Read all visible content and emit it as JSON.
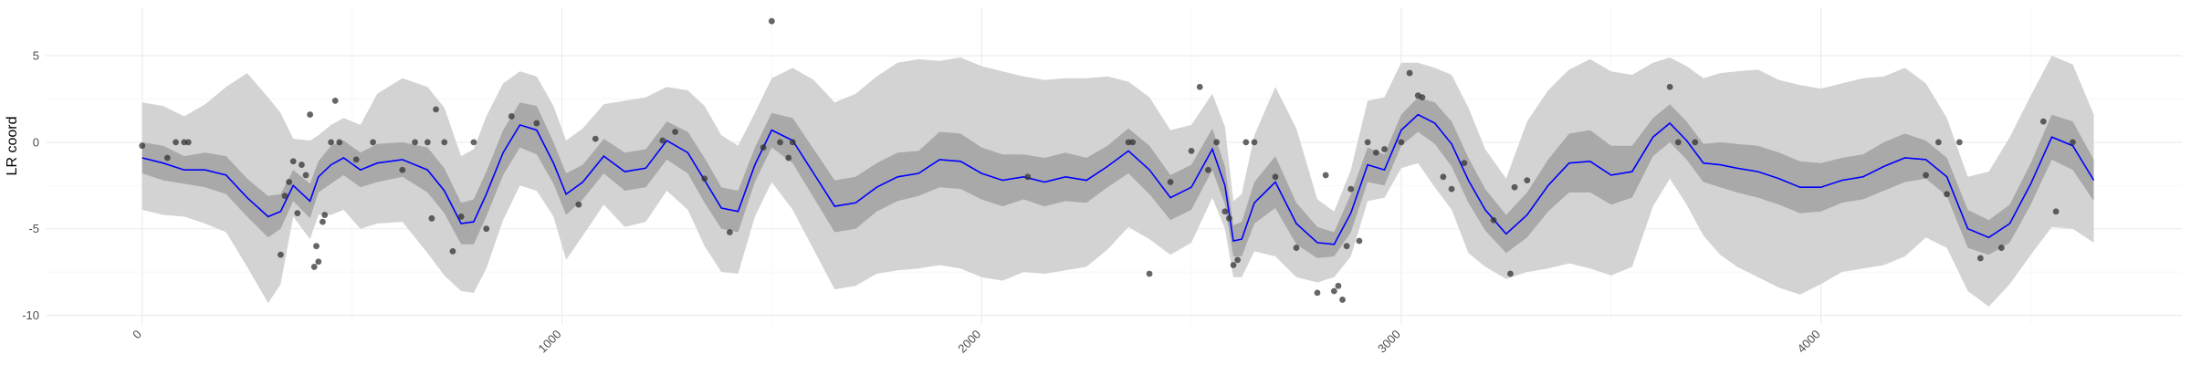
{
  "chart_data": {
    "type": "line",
    "title": "",
    "xlabel": "",
    "ylabel": "LR coord",
    "xlim": [
      -230,
      4860
    ],
    "ylim": [
      -10.5,
      7.8
    ],
    "grid": true,
    "x_ticks": [
      0,
      1000,
      2000,
      3000,
      4000
    ],
    "x_tick_labels": [
      "0",
      "1000",
      "2000",
      "3000",
      "4000"
    ],
    "y_ticks": [
      -10,
      -5,
      0,
      5
    ],
    "y_tick_labels": [
      "-10",
      "-5",
      "0",
      "5"
    ],
    "colors": {
      "line": "#0000ff",
      "band_inner": "#a9a9a9",
      "band_outer": "#d3d3d3",
      "points": "#333333"
    },
    "series": [
      {
        "type": "line",
        "x": [
          0,
          50,
          100,
          150,
          200,
          250,
          300,
          330,
          360,
          400,
          420,
          450,
          480,
          520,
          560,
          620,
          680,
          720,
          760,
          790,
          820,
          860,
          900,
          940,
          980,
          1010,
          1050,
          1100,
          1150,
          1200,
          1250,
          1300,
          1340,
          1380,
          1420,
          1460,
          1500,
          1550,
          1600,
          1650,
          1700,
          1750,
          1800,
          1850,
          1900,
          1950,
          2000,
          2050,
          2100,
          2150,
          2200,
          2250,
          2300,
          2350,
          2400,
          2450,
          2500,
          2550,
          2580,
          2600,
          2620,
          2650,
          2700,
          2750,
          2800,
          2840,
          2880,
          2920,
          2960,
          3000,
          3040,
          3080,
          3120,
          3160,
          3200,
          3250,
          3300,
          3350,
          3400,
          3450,
          3500,
          3550,
          3600,
          3640,
          3680,
          3720,
          3760,
          3800,
          3850,
          3900,
          3950,
          4000,
          4050,
          4100,
          4150,
          4200,
          4250,
          4300,
          4350,
          4400,
          4450,
          4500,
          4550,
          4600,
          4650
        ],
        "y": [
          -0.9,
          -1.2,
          -1.6,
          -1.6,
          -1.9,
          -3.2,
          -4.3,
          -4.0,
          -2.5,
          -3.4,
          -2.0,
          -1.3,
          -0.9,
          -1.6,
          -1.2,
          -1.0,
          -1.6,
          -2.8,
          -4.7,
          -4.6,
          -3.0,
          -0.6,
          1.0,
          0.7,
          -1.2,
          -3.0,
          -2.3,
          -0.8,
          -1.7,
          -1.5,
          0.1,
          -0.6,
          -2.2,
          -3.8,
          -4.0,
          -1.3,
          0.7,
          0.1,
          -1.8,
          -3.7,
          -3.5,
          -2.6,
          -2.0,
          -1.8,
          -1.0,
          -1.1,
          -1.8,
          -2.2,
          -2.0,
          -2.3,
          -2.0,
          -2.2,
          -1.4,
          -0.5,
          -1.6,
          -3.2,
          -2.6,
          -0.4,
          -2.5,
          -5.7,
          -5.6,
          -3.5,
          -2.3,
          -4.7,
          -5.8,
          -5.9,
          -4.1,
          -1.3,
          -1.6,
          0.7,
          1.6,
          1.1,
          -0.1,
          -2.2,
          -3.9,
          -5.3,
          -4.2,
          -2.5,
          -1.2,
          -1.1,
          -1.9,
          -1.7,
          0.3,
          1.1,
          0.1,
          -1.2,
          -1.3,
          -1.5,
          -1.7,
          -2.1,
          -2.6,
          -2.6,
          -2.2,
          -2.0,
          -1.4,
          -0.9,
          -1.0,
          -2.0,
          -5.0,
          -5.5,
          -4.7,
          -2.4,
          0.3,
          -0.2,
          -2.2
        ],
        "inner_lower": [
          -1.8,
          -2.2,
          -2.4,
          -2.6,
          -3.0,
          -4.3,
          -5.5,
          -5.0,
          -3.4,
          -4.4,
          -2.9,
          -2.4,
          -1.9,
          -2.6,
          -2.3,
          -2.0,
          -2.9,
          -4.1,
          -5.9,
          -5.9,
          -4.3,
          -1.9,
          -0.3,
          -0.7,
          -2.4,
          -4.2,
          -3.3,
          -1.8,
          -2.8,
          -2.6,
          -1.0,
          -1.8,
          -3.5,
          -5.0,
          -5.2,
          -2.3,
          -0.3,
          -1.2,
          -3.2,
          -5.2,
          -5.0,
          -4.0,
          -3.4,
          -3.1,
          -2.6,
          -2.7,
          -3.3,
          -3.7,
          -3.3,
          -3.7,
          -3.4,
          -3.5,
          -2.6,
          -1.8,
          -3.0,
          -4.5,
          -3.9,
          -1.6,
          -3.6,
          -6.6,
          -6.6,
          -4.7,
          -3.8,
          -5.9,
          -6.7,
          -6.6,
          -5.2,
          -2.3,
          -2.5,
          -0.2,
          0.6,
          -0.1,
          -1.4,
          -3.5,
          -5.1,
          -6.4,
          -5.5,
          -4.0,
          -2.9,
          -2.9,
          -3.6,
          -3.2,
          -0.8,
          0.0,
          -1.0,
          -2.3,
          -2.6,
          -2.9,
          -3.2,
          -3.6,
          -4.1,
          -4.0,
          -3.5,
          -3.3,
          -2.8,
          -2.3,
          -2.1,
          -3.1,
          -6.1,
          -6.5,
          -5.8,
          -3.6,
          -1.0,
          -1.6,
          -3.4
        ],
        "inner_upper": [
          0.0,
          -0.2,
          -0.8,
          -0.6,
          -0.8,
          -2.1,
          -3.1,
          -3.0,
          -1.6,
          -2.4,
          -1.1,
          -0.2,
          0.1,
          -0.6,
          -0.1,
          0.0,
          -0.3,
          -1.5,
          -3.5,
          -3.3,
          -1.7,
          0.7,
          2.3,
          2.1,
          0.0,
          -1.8,
          -1.3,
          0.2,
          -0.6,
          -0.4,
          1.2,
          0.6,
          -0.9,
          -2.6,
          -2.8,
          -0.3,
          1.7,
          1.4,
          -0.4,
          -2.2,
          -2.0,
          -1.2,
          -0.6,
          -0.5,
          0.6,
          0.5,
          -0.3,
          -0.7,
          -0.7,
          -0.9,
          -0.6,
          -0.9,
          -0.2,
          0.8,
          -0.2,
          -1.9,
          -1.3,
          0.8,
          -1.4,
          -4.8,
          -4.6,
          -2.3,
          -0.8,
          -3.5,
          -4.9,
          -5.2,
          -3.0,
          -0.3,
          -0.7,
          1.6,
          2.6,
          2.3,
          1.2,
          -0.9,
          -2.7,
          -4.2,
          -2.9,
          -1.0,
          0.5,
          0.7,
          -0.2,
          -0.2,
          1.4,
          2.2,
          1.2,
          -0.1,
          0.0,
          -0.1,
          -0.2,
          -0.6,
          -1.1,
          -1.2,
          -0.9,
          -0.7,
          0.0,
          0.5,
          0.1,
          -0.9,
          -3.9,
          -4.5,
          -3.6,
          -1.2,
          1.6,
          1.2,
          -1.0
        ],
        "outer_lower": [
          -3.9,
          -4.2,
          -4.3,
          -4.7,
          -5.2,
          -7.2,
          -9.3,
          -8.2,
          -4.3,
          -5.6,
          -4.2,
          -4.2,
          -3.9,
          -5.0,
          -4.7,
          -4.6,
          -6.4,
          -7.7,
          -8.6,
          -8.7,
          -7.3,
          -4.5,
          -2.5,
          -2.8,
          -4.3,
          -6.8,
          -5.4,
          -3.6,
          -4.9,
          -4.6,
          -2.8,
          -3.9,
          -6.0,
          -7.5,
          -7.6,
          -4.3,
          -2.3,
          -3.9,
          -6.2,
          -8.5,
          -8.3,
          -7.6,
          -7.4,
          -7.3,
          -7.1,
          -7.3,
          -7.8,
          -8.0,
          -7.5,
          -7.6,
          -7.4,
          -7.2,
          -6.2,
          -4.9,
          -5.6,
          -6.5,
          -5.8,
          -3.2,
          -5.0,
          -7.8,
          -7.8,
          -6.3,
          -6.6,
          -7.8,
          -8.1,
          -7.8,
          -6.6,
          -3.4,
          -3.2,
          -1.5,
          -1.2,
          -2.6,
          -3.9,
          -6.4,
          -7.2,
          -7.9,
          -7.5,
          -7.3,
          -7.0,
          -7.3,
          -7.7,
          -7.2,
          -3.7,
          -2.1,
          -3.6,
          -5.4,
          -6.5,
          -7.2,
          -7.8,
          -8.4,
          -8.8,
          -8.2,
          -7.5,
          -7.3,
          -7.1,
          -6.6,
          -5.5,
          -6.1,
          -8.6,
          -9.5,
          -8.2,
          -6.5,
          -4.9,
          -5.0,
          -5.8
        ],
        "outer_upper": [
          2.3,
          2.1,
          1.5,
          2.2,
          3.2,
          4.0,
          2.6,
          1.7,
          0.2,
          0.1,
          0.4,
          1.0,
          1.4,
          1.0,
          2.8,
          3.7,
          3.2,
          2.0,
          -0.8,
          -0.4,
          1.5,
          3.4,
          4.1,
          3.8,
          2.1,
          0.1,
          0.8,
          2.2,
          2.4,
          2.6,
          3.2,
          3.0,
          2.1,
          0.4,
          -0.2,
          1.7,
          3.7,
          4.3,
          3.6,
          2.3,
          2.8,
          3.8,
          4.6,
          4.8,
          4.7,
          4.9,
          4.4,
          4.1,
          3.8,
          3.6,
          3.7,
          3.7,
          3.8,
          3.5,
          2.6,
          0.7,
          1.0,
          2.8,
          0.9,
          -3.4,
          -3.0,
          0.4,
          3.2,
          0.8,
          -3.3,
          -4.0,
          -1.6,
          2.4,
          2.6,
          4.6,
          4.6,
          4.3,
          3.9,
          2.0,
          -0.4,
          -2.1,
          1.2,
          3.0,
          4.2,
          4.8,
          4.1,
          3.9,
          4.6,
          4.9,
          4.4,
          3.7,
          4.0,
          4.1,
          4.2,
          3.6,
          3.3,
          3.1,
          3.4,
          3.7,
          3.8,
          4.3,
          3.4,
          1.4,
          -2.0,
          -1.7,
          0.3,
          2.7,
          5.0,
          4.5,
          1.6
        ]
      },
      {
        "type": "scatter",
        "x": [
          0,
          60,
          80,
          100,
          110,
          330,
          340,
          350,
          360,
          370,
          380,
          390,
          400,
          410,
          415,
          420,
          430,
          435,
          450,
          460,
          470,
          510,
          550,
          620,
          650,
          680,
          690,
          700,
          720,
          740,
          760,
          790,
          820,
          880,
          940,
          1040,
          1080,
          1240,
          1270,
          1340,
          1400,
          1480,
          1500,
          1520,
          1540,
          1550,
          2110,
          2350,
          2360,
          2400,
          2450,
          2500,
          2520,
          2540,
          2560,
          2580,
          2590,
          2600,
          2610,
          2630,
          2650,
          2700,
          2750,
          2800,
          2820,
          2840,
          2850,
          2860,
          2870,
          2880,
          2900,
          2920,
          2940,
          2960,
          3000,
          3020,
          3040,
          3050,
          3100,
          3120,
          3150,
          3220,
          3260,
          3270,
          3300,
          3640,
          3660,
          3700,
          4250,
          4280,
          4300,
          4330,
          4380,
          4430,
          4530,
          4560,
          4600
        ],
        "y": [
          -0.2,
          -0.9,
          0.0,
          0.0,
          0.0,
          -6.5,
          -3.1,
          -2.3,
          -1.1,
          -4.1,
          -1.3,
          -1.9,
          1.6,
          -7.2,
          -6.0,
          -6.9,
          -4.6,
          -4.2,
          0.0,
          2.4,
          0.0,
          -1.0,
          0.0,
          -1.6,
          0.0,
          0.0,
          -4.4,
          1.9,
          0.0,
          -6.3,
          -4.3,
          0.0,
          -5.0,
          1.5,
          1.1,
          -3.6,
          0.2,
          0.1,
          0.6,
          -2.1,
          -5.2,
          -0.3,
          7.0,
          0.0,
          -0.9,
          0.0,
          -2.0,
          0.0,
          0.0,
          -7.6,
          -2.3,
          -0.5,
          3.2,
          -1.6,
          0.0,
          -4.0,
          -4.4,
          -7.1,
          -6.8,
          0.0,
          0.0,
          -2.0,
          -6.1,
          -8.7,
          -1.9,
          -8.6,
          -8.3,
          -9.1,
          -6.0,
          -2.7,
          -5.7,
          0.0,
          -0.6,
          -0.4,
          0.0,
          4.0,
          2.7,
          2.6,
          -2.0,
          -2.7,
          -1.2,
          -4.5,
          -7.6,
          -2.6,
          -2.2,
          3.2,
          0.0,
          0.0,
          -1.9,
          0.0,
          -3.0,
          0.0,
          -6.7,
          -6.1,
          1.2,
          -4.0,
          0.0
        ]
      }
    ]
  }
}
